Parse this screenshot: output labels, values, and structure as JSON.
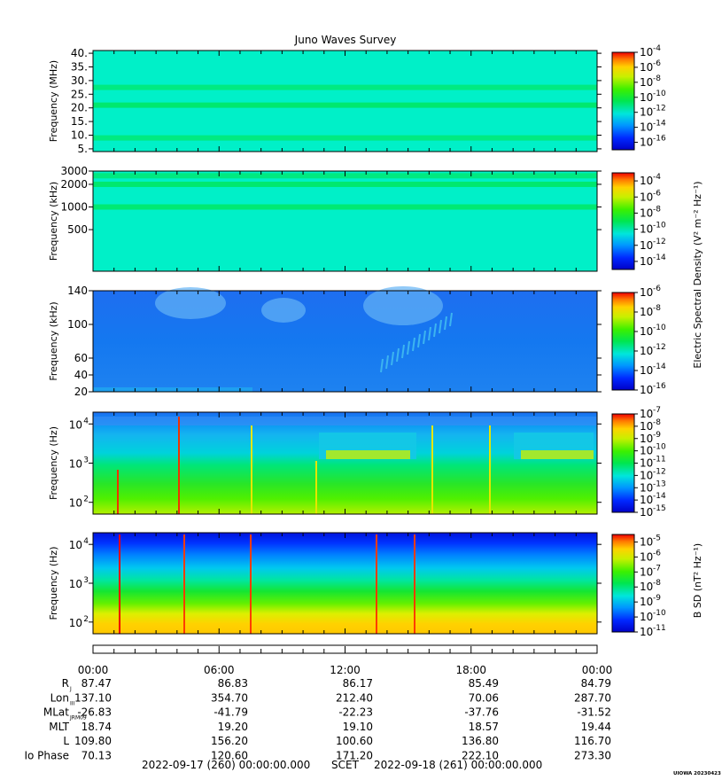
{
  "chart_data": {
    "type": "heatmap",
    "title": "Juno Waves Survey",
    "panels": [
      {
        "ylabel": "Frequency (MHz)",
        "scale": "linear",
        "ylim": [
          4,
          41
        ],
        "ytick_labels": [
          "40.",
          "35.",
          "30.",
          "25.",
          "20.",
          "15.",
          "10.",
          "5."
        ],
        "ytick_values": [
          40,
          35,
          30,
          25,
          20,
          15,
          10,
          5
        ],
        "cb_min": -17,
        "cb_max": -4,
        "cb_ticks": [
          {
            "b": "10",
            "e": "-4",
            "v": -4
          },
          {
            "b": "10",
            "e": "-6",
            "v": -6
          },
          {
            "b": "10",
            "e": "-8",
            "v": -8
          },
          {
            "b": "10",
            "e": "-10",
            "v": -10
          },
          {
            "b": "10",
            "e": "-12",
            "v": -12
          },
          {
            "b": "10",
            "e": "-14",
            "v": -14
          },
          {
            "b": "10",
            "e": "-16",
            "v": -16
          }
        ],
        "bands": [
          {
            "f": 21,
            "level": 0.45
          },
          {
            "f": 27.5,
            "level": 0.3
          },
          {
            "f": 9.0,
            "level": 0.3
          }
        ]
      },
      {
        "ylabel": "Frequency (kHz)",
        "scale": "log",
        "ylim": [
          140,
          3000
        ],
        "ytick_labels": [
          "3000",
          "2000",
          "1000",
          "500"
        ],
        "ytick_values": [
          3000,
          2000,
          1000,
          500
        ],
        "cb_min": -15,
        "cb_max": -3,
        "cb_ticks": [
          {
            "b": "10",
            "e": "-4",
            "v": -4
          },
          {
            "b": "10",
            "e": "-6",
            "v": -6
          },
          {
            "b": "10",
            "e": "-8",
            "v": -8
          },
          {
            "b": "10",
            "e": "-10",
            "v": -10
          },
          {
            "b": "10",
            "e": "-12",
            "v": -12
          },
          {
            "b": "10",
            "e": "-14",
            "v": -14
          }
        ],
        "bands": [
          {
            "f": 2000,
            "level": 0.45
          },
          {
            "f": 1000,
            "level": 0.42
          },
          {
            "f": 2600,
            "level": 0.3
          }
        ]
      },
      {
        "ylabel": "Frequency (kHz)",
        "scale": "linear",
        "ylim": [
          20,
          140
        ],
        "ytick_labels": [
          "140",
          "100",
          "60",
          "40",
          "20"
        ],
        "ytick_values": [
          140,
          100,
          60,
          40,
          20
        ],
        "cb_min": -16,
        "cb_max": -6,
        "cb_ticks": [
          {
            "b": "10",
            "e": "-6",
            "v": -6
          },
          {
            "b": "10",
            "e": "-8",
            "v": -8
          },
          {
            "b": "10",
            "e": "-10",
            "v": -10
          },
          {
            "b": "10",
            "e": "-12",
            "v": -12
          },
          {
            "b": "10",
            "e": "-14",
            "v": -14
          },
          {
            "b": "10",
            "e": "-16",
            "v": -16
          }
        ],
        "bands": []
      },
      {
        "ylabel": "Frequency (Hz)",
        "scale": "log",
        "ylim": [
          50,
          20000
        ],
        "ytick_labels": [
          "10",
          "10",
          "10"
        ],
        "ytick_exps": [
          "4",
          "3",
          "2"
        ],
        "ytick_values": [
          10000,
          1000,
          100
        ],
        "cb_min": -15,
        "cb_max": -7,
        "cb_ticks": [
          {
            "b": "10",
            "e": "-7",
            "v": -7
          },
          {
            "b": "10",
            "e": "-8",
            "v": -8
          },
          {
            "b": "10",
            "e": "-9",
            "v": -9
          },
          {
            "b": "10",
            "e": "-10",
            "v": -10
          },
          {
            "b": "10",
            "e": "-11",
            "v": -11
          },
          {
            "b": "10",
            "e": "-12",
            "v": -12
          },
          {
            "b": "10",
            "e": "-13",
            "v": -13
          },
          {
            "b": "10",
            "e": "-14",
            "v": -14
          },
          {
            "b": "10",
            "e": "-15",
            "v": -15
          }
        ],
        "bands": []
      },
      {
        "ylabel": "Frequency (Hz)",
        "scale": "log",
        "ylim": [
          50,
          20000
        ],
        "ytick_labels": [
          "10",
          "10",
          "10"
        ],
        "ytick_exps": [
          "4",
          "3",
          "2"
        ],
        "ytick_values": [
          10000,
          1000,
          100
        ],
        "cb_min": -11,
        "cb_max": -4.5,
        "cb_ticks": [
          {
            "b": "10",
            "e": "-5",
            "v": -5
          },
          {
            "b": "10",
            "e": "-6",
            "v": -6
          },
          {
            "b": "10",
            "e": "-7",
            "v": -7
          },
          {
            "b": "10",
            "e": "-8",
            "v": -8
          },
          {
            "b": "10",
            "e": "-9",
            "v": -9
          },
          {
            "b": "10",
            "e": "-10",
            "v": -10
          },
          {
            "b": "10",
            "e": "-11",
            "v": -11
          }
        ],
        "bands": []
      }
    ],
    "cb_label_upper": "Electric Spectral Density (V² m⁻² Hz⁻¹)",
    "cb_label_lower": "B SD (nT² Hz⁻¹)",
    "xtick_labels": [
      "00:00",
      "06:00",
      "12:00",
      "18:00",
      "00:00"
    ],
    "ephemeris": [
      {
        "label": "R",
        "sub": "J",
        "values": [
          "87.47",
          "86.83",
          "86.17",
          "85.49",
          "84.79"
        ]
      },
      {
        "label": "Lon",
        "sub": "III",
        "values": [
          "137.10",
          "354.70",
          "212.40",
          "70.06",
          "287.70"
        ]
      },
      {
        "label": "MLat",
        "sub": "JRM09",
        "values": [
          "-26.83",
          "-41.79",
          "-22.23",
          "-37.76",
          "-31.52"
        ]
      },
      {
        "label": "MLT",
        "sub": "",
        "values": [
          "18.74",
          "19.20",
          "19.10",
          "18.57",
          "19.44"
        ]
      },
      {
        "label": "L",
        "sub": "",
        "values": [
          "109.80",
          "156.20",
          "100.60",
          "136.80",
          "116.70"
        ]
      },
      {
        "label": "Io Phase",
        "sub": "",
        "values": [
          "70.13",
          "120.60",
          "171.20",
          "222.10",
          "273.30"
        ]
      }
    ],
    "footer": {
      "start": "2022-09-17 (260) 00:00:00.000",
      "mid": "SCET",
      "end": "2022-09-18 (261) 00:00:00.000"
    },
    "stamp": "UIOWA 20230423"
  }
}
